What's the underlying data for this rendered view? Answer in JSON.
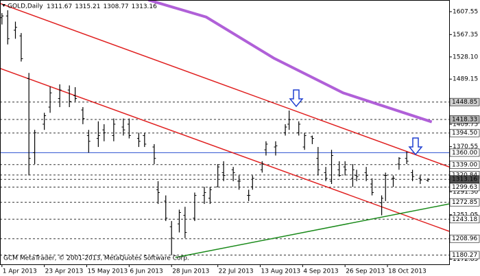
{
  "chart_data": {
    "type": "ohlc",
    "symbol": "GOLD,Daily",
    "watermark": "GCM MetaTrader, © 2001-2013, MetaQuotes Software Corp.",
    "xlim": [
      "2013-03-31",
      "2013-11-19"
    ],
    "ylim": [
      1164,
      1628
    ],
    "yticks": [
      1607.55,
      1567.35,
      {
        "value": 1528.1,
        "label": "1528.10"
      },
      1489.15,
      1409.75,
      1370.55,
      {
        "value": 1291.3,
        "label": "1291.30"
      },
      1251.05,
      1172.85
    ],
    "xticks": [
      {
        "value": "2013-04-01",
        "label": "1 Apr 2013"
      },
      {
        "value": "2013-04-23",
        "label": "23 Apr 2013"
      },
      {
        "value": "2013-05-15",
        "label": "15 May 2013"
      },
      {
        "value": "2013-06-06",
        "label": "6 Jun 2013"
      },
      {
        "value": "2013-06-28",
        "label": "28 Jun 2013"
      },
      {
        "value": "2013-07-22",
        "label": "22 Jul 2013"
      },
      {
        "value": "2013-08-13",
        "label": "13 Aug 2013"
      },
      {
        "value": "2013-09-04",
        "label": "4 Sep 2013"
      },
      {
        "value": "2013-09-26",
        "label": "26 Sep 2013"
      },
      {
        "value": "2013-10-18",
        "label": "18 Oct 2013"
      }
    ],
    "levels": [
      {
        "value": 1448.85,
        "fill": "#d0d0d0"
      },
      {
        "value": 1418.33,
        "fill": "#b8b8b8"
      },
      {
        "value": 1394.5,
        "label": "1394.50"
      },
      {
        "value": 1360,
        "label": "1360.00",
        "color": "#2a4fd0"
      },
      {
        "value": 1339,
        "label": "1339.00"
      },
      {
        "value": 1320.84
      },
      {
        "value": 1313.16,
        "fill": "#505050"
      },
      {
        "value": 1299.63
      },
      {
        "value": 1272.85
      },
      {
        "value": 1243.18
      },
      {
        "value": 1208.96
      },
      {
        "value": 1180.27
      }
    ],
    "bar_color": "#000000",
    "ma": {
      "color": "#b060d8",
      "x": [
        "2013-06-16",
        "2013-07-16",
        "2013-08-20",
        "2013-09-25",
        "2013-11-10"
      ],
      "values": [
        1628,
        1598,
        1526,
        1465,
        1414
      ]
    },
    "trendlines": [
      {
        "color": "#e02020",
        "x": [
          "2013-03-31",
          "2013-11-19"
        ],
        "values": [
          1622,
          1335
        ]
      },
      {
        "color": "#e02020",
        "x": [
          "2013-03-31",
          "2013-11-19"
        ],
        "values": [
          1508,
          1222
        ]
      },
      {
        "color": "#1a8a1a",
        "x": [
          "2013-06-30",
          "2013-11-19"
        ],
        "values": [
          1176,
          1270
        ]
      }
    ],
    "candles": [
      {
        "x": "2013-04-01",
        "o": 1597,
        "h": 1605,
        "l": 1585,
        "c": 1600
      },
      {
        "x": "2013-04-04",
        "o": 1600,
        "h": 1610,
        "l": 1550,
        "c": 1560
      },
      {
        "x": "2013-04-08",
        "o": 1575,
        "h": 1590,
        "l": 1560,
        "c": 1580
      },
      {
        "x": "2013-04-11",
        "o": 1565,
        "h": 1570,
        "l": 1520,
        "c": 1525
      },
      {
        "x": "2013-04-15",
        "o": 1490,
        "h": 1500,
        "l": 1320,
        "c": 1350
      },
      {
        "x": "2013-04-18",
        "o": 1360,
        "h": 1400,
        "l": 1340,
        "c": 1395
      },
      {
        "x": "2013-04-23",
        "o": 1410,
        "h": 1430,
        "l": 1400,
        "c": 1425
      },
      {
        "x": "2013-04-26",
        "o": 1440,
        "h": 1476,
        "l": 1430,
        "c": 1465
      },
      {
        "x": "2013-05-01",
        "o": 1455,
        "h": 1480,
        "l": 1440,
        "c": 1470
      },
      {
        "x": "2013-05-06",
        "o": 1470,
        "h": 1478,
        "l": 1440,
        "c": 1450
      },
      {
        "x": "2013-05-09",
        "o": 1460,
        "h": 1475,
        "l": 1450,
        "c": 1455
      },
      {
        "x": "2013-05-13",
        "o": 1435,
        "h": 1440,
        "l": 1410,
        "c": 1420
      },
      {
        "x": "2013-05-16",
        "o": 1390,
        "h": 1400,
        "l": 1360,
        "c": 1380
      },
      {
        "x": "2013-05-21",
        "o": 1385,
        "h": 1415,
        "l": 1370,
        "c": 1390
      },
      {
        "x": "2013-05-24",
        "o": 1400,
        "h": 1410,
        "l": 1380,
        "c": 1395
      },
      {
        "x": "2013-05-29",
        "o": 1390,
        "h": 1420,
        "l": 1380,
        "c": 1410
      },
      {
        "x": "2013-06-03",
        "o": 1405,
        "h": 1420,
        "l": 1390,
        "c": 1400
      },
      {
        "x": "2013-06-06",
        "o": 1410,
        "h": 1420,
        "l": 1385,
        "c": 1390
      },
      {
        "x": "2013-06-11",
        "o": 1385,
        "h": 1395,
        "l": 1370,
        "c": 1380
      },
      {
        "x": "2013-06-14",
        "o": 1390,
        "h": 1395,
        "l": 1370,
        "c": 1375
      },
      {
        "x": "2013-06-19",
        "o": 1370,
        "h": 1375,
        "l": 1340,
        "c": 1350
      },
      {
        "x": "2013-06-21",
        "o": 1295,
        "h": 1310,
        "l": 1270,
        "c": 1290
      },
      {
        "x": "2013-06-25",
        "o": 1275,
        "h": 1285,
        "l": 1240,
        "c": 1245
      },
      {
        "x": "2013-06-28",
        "o": 1230,
        "h": 1240,
        "l": 1180,
        "c": 1210
      },
      {
        "x": "2013-07-02",
        "o": 1235,
        "h": 1260,
        "l": 1220,
        "c": 1255
      },
      {
        "x": "2013-07-05",
        "o": 1250,
        "h": 1265,
        "l": 1210,
        "c": 1220
      },
      {
        "x": "2013-07-10",
        "o": 1245,
        "h": 1290,
        "l": 1240,
        "c": 1285
      },
      {
        "x": "2013-07-15",
        "o": 1285,
        "h": 1300,
        "l": 1270,
        "c": 1290
      },
      {
        "x": "2013-07-18",
        "o": 1280,
        "h": 1300,
        "l": 1270,
        "c": 1295
      },
      {
        "x": "2013-07-22",
        "o": 1300,
        "h": 1340,
        "l": 1300,
        "c": 1335
      },
      {
        "x": "2013-07-25",
        "o": 1325,
        "h": 1345,
        "l": 1310,
        "c": 1320
      },
      {
        "x": "2013-07-30",
        "o": 1330,
        "h": 1335,
        "l": 1310,
        "c": 1325
      },
      {
        "x": "2013-08-02",
        "o": 1310,
        "h": 1320,
        "l": 1295,
        "c": 1310
      },
      {
        "x": "2013-08-07",
        "o": 1285,
        "h": 1295,
        "l": 1275,
        "c": 1285
      },
      {
        "x": "2013-08-09",
        "o": 1300,
        "h": 1320,
        "l": 1295,
        "c": 1315
      },
      {
        "x": "2013-08-14",
        "o": 1330,
        "h": 1345,
        "l": 1325,
        "c": 1340
      },
      {
        "x": "2013-08-16",
        "o": 1365,
        "h": 1380,
        "l": 1355,
        "c": 1375
      },
      {
        "x": "2013-08-21",
        "o": 1370,
        "h": 1380,
        "l": 1355,
        "c": 1372
      },
      {
        "x": "2013-08-26",
        "o": 1395,
        "h": 1410,
        "l": 1390,
        "c": 1405
      },
      {
        "x": "2013-08-28",
        "o": 1410,
        "h": 1434,
        "l": 1400,
        "c": 1418
      },
      {
        "x": "2013-09-02",
        "o": 1395,
        "h": 1415,
        "l": 1390,
        "c": 1410
      },
      {
        "x": "2013-09-05",
        "o": 1370,
        "h": 1395,
        "l": 1365,
        "c": 1390
      },
      {
        "x": "2013-09-09",
        "o": 1388,
        "h": 1390,
        "l": 1375,
        "c": 1385
      },
      {
        "x": "2013-09-12",
        "o": 1350,
        "h": 1370,
        "l": 1320,
        "c": 1330
      },
      {
        "x": "2013-09-16",
        "o": 1325,
        "h": 1335,
        "l": 1310,
        "c": 1315
      },
      {
        "x": "2013-09-19",
        "o": 1310,
        "h": 1365,
        "l": 1305,
        "c": 1355
      },
      {
        "x": "2013-09-23",
        "o": 1330,
        "h": 1345,
        "l": 1318,
        "c": 1320
      },
      {
        "x": "2013-09-26",
        "o": 1335,
        "h": 1345,
        "l": 1320,
        "c": 1330
      },
      {
        "x": "2013-09-30",
        "o": 1315,
        "h": 1340,
        "l": 1300,
        "c": 1330
      },
      {
        "x": "2013-10-02",
        "o": 1320,
        "h": 1330,
        "l": 1310,
        "c": 1318
      },
      {
        "x": "2013-10-07",
        "o": 1325,
        "h": 1335,
        "l": 1310,
        "c": 1320
      },
      {
        "x": "2013-10-10",
        "o": 1305,
        "h": 1315,
        "l": 1285,
        "c": 1290
      },
      {
        "x": "2013-10-15",
        "o": 1272,
        "h": 1285,
        "l": 1250,
        "c": 1280
      },
      {
        "x": "2013-10-17",
        "o": 1320,
        "h": 1325,
        "l": 1275,
        "c": 1320
      },
      {
        "x": "2013-10-21",
        "o": 1315,
        "h": 1320,
        "l": 1300,
        "c": 1315
      },
      {
        "x": "2013-10-24",
        "o": 1340,
        "h": 1352,
        "l": 1330,
        "c": 1350
      },
      {
        "x": "2013-10-28",
        "o": 1350,
        "h": 1362,
        "l": 1340,
        "c": 1345
      },
      {
        "x": "2013-10-31",
        "o": 1325,
        "h": 1330,
        "l": 1310,
        "c": 1318
      },
      {
        "x": "2013-11-04",
        "o": 1315,
        "h": 1320,
        "l": 1305,
        "c": 1312
      },
      {
        "x": "2013-11-08",
        "o": 1311.67,
        "h": 1315.21,
        "l": 1308.77,
        "c": 1313.16
      }
    ]
  }
}
